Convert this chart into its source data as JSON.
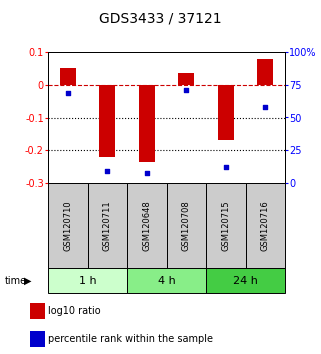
{
  "title": "GDS3433 / 37121",
  "samples": [
    "GSM120710",
    "GSM120711",
    "GSM120648",
    "GSM120708",
    "GSM120715",
    "GSM120716"
  ],
  "log10_ratio": [
    0.052,
    -0.222,
    -0.235,
    0.035,
    -0.17,
    0.078
  ],
  "percentile_rank": [
    69,
    9,
    8,
    71,
    12,
    58
  ],
  "groups": [
    {
      "label": "1 h",
      "samples": [
        0,
        1
      ],
      "color": "#ccffcc"
    },
    {
      "label": "4 h",
      "samples": [
        2,
        3
      ],
      "color": "#88ee88"
    },
    {
      "label": "24 h",
      "samples": [
        4,
        5
      ],
      "color": "#44cc44"
    }
  ],
  "ylim_left": [
    -0.3,
    0.1
  ],
  "ylim_right": [
    0,
    100
  ],
  "yticks_left": [
    0.1,
    0,
    -0.1,
    -0.2,
    -0.3
  ],
  "yticks_right": [
    100,
    75,
    50,
    25,
    0
  ],
  "bar_color": "#cc0000",
  "dot_color": "#0000cc",
  "hline_color": "#cc0000",
  "grid_color": "#000000",
  "bar_width": 0.4,
  "bg_color": "#ffffff",
  "sample_box_color": "#cccccc",
  "title_fontsize": 10,
  "tick_fontsize": 7,
  "sample_fontsize": 6,
  "group_fontsize": 8,
  "legend_fontsize": 7
}
